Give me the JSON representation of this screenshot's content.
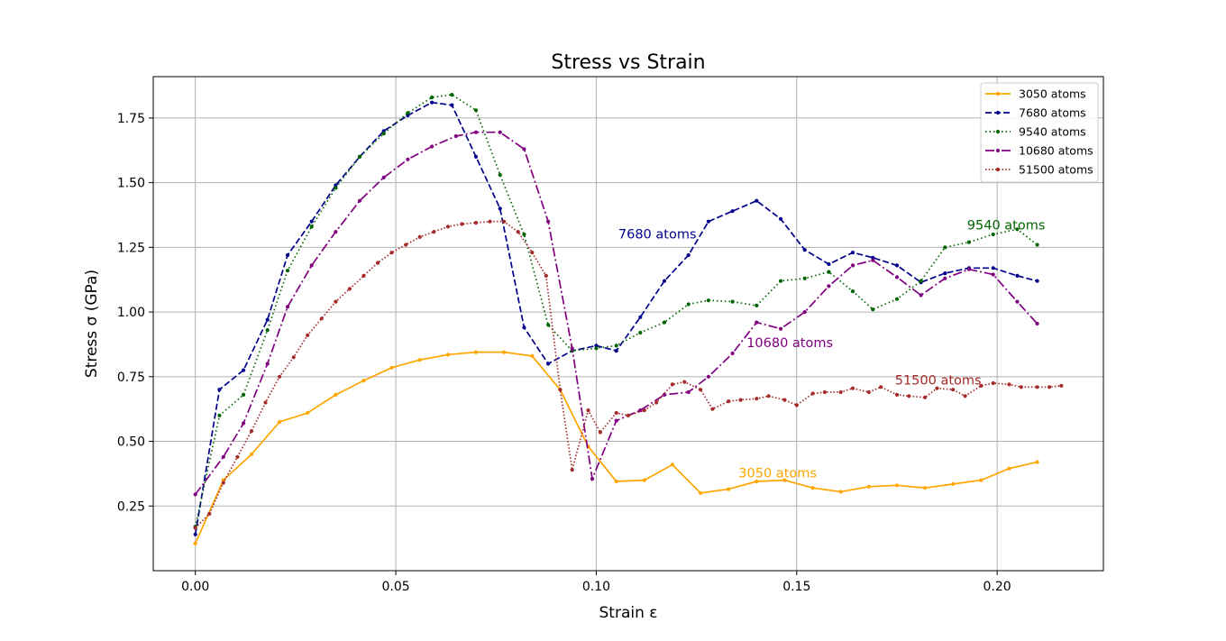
{
  "chart_data": {
    "type": "line",
    "title": "Stress vs Strain",
    "xlabel": "Strain ε",
    "ylabel": "Stress σ (GPa)",
    "xlim": [
      -0.0105,
      0.2265
    ],
    "ylim": [
      0.0,
      1.91
    ],
    "xticks": [
      "0.00",
      "0.05",
      "0.10",
      "0.15",
      "0.20"
    ],
    "yticks": [
      "0.25",
      "0.50",
      "0.75",
      "1.00",
      "1.25",
      "1.50",
      "1.75"
    ],
    "grid": true,
    "legend": "top-right",
    "series": [
      {
        "name": "3050 atoms",
        "color": "#ffa500",
        "dash": "solid",
        "annotation": "3050 atoms",
        "x": [
          0.0,
          0.007,
          0.014,
          0.021,
          0.028,
          0.035,
          0.042,
          0.049,
          0.056,
          0.063,
          0.07,
          0.077,
          0.084,
          0.091,
          0.098,
          0.105,
          0.112,
          0.119,
          0.126,
          0.133,
          0.14,
          0.147,
          0.154,
          0.161,
          0.168,
          0.175,
          0.182,
          0.189,
          0.196,
          0.203,
          0.21
        ],
        "y": [
          0.105,
          0.35,
          0.45,
          0.575,
          0.61,
          0.68,
          0.735,
          0.785,
          0.815,
          0.835,
          0.845,
          0.845,
          0.83,
          0.7,
          0.48,
          0.345,
          0.35,
          0.41,
          0.3,
          0.315,
          0.345,
          0.35,
          0.32,
          0.305,
          0.325,
          0.33,
          0.32,
          0.335,
          0.35,
          0.395,
          0.42
        ]
      },
      {
        "name": "7680 atoms",
        "color": "#00008b",
        "dash": "dashed",
        "annotation": "7680 atoms",
        "x": [
          0.0,
          0.006,
          0.012,
          0.018,
          0.023,
          0.029,
          0.035,
          0.041,
          0.047,
          0.053,
          0.059,
          0.064,
          0.07,
          0.076,
          0.082,
          0.088,
          0.094,
          0.1,
          0.105,
          0.111,
          0.117,
          0.123,
          0.128,
          0.134,
          0.14,
          0.146,
          0.152,
          0.158,
          0.164,
          0.169,
          0.175,
          0.181,
          0.187,
          0.193,
          0.199,
          0.205,
          0.21
        ],
        "y": [
          0.14,
          0.7,
          0.775,
          0.97,
          1.22,
          1.35,
          1.49,
          1.6,
          1.7,
          1.76,
          1.81,
          1.8,
          1.6,
          1.4,
          0.94,
          0.8,
          0.85,
          0.87,
          0.85,
          0.98,
          1.12,
          1.22,
          1.35,
          1.39,
          1.43,
          1.36,
          1.24,
          1.185,
          1.23,
          1.21,
          1.18,
          1.115,
          1.15,
          1.17,
          1.17,
          1.14,
          1.12
        ]
      },
      {
        "name": "9540 atoms",
        "color": "#006400",
        "dash": "dotted",
        "annotation": "9540 atoms",
        "x": [
          0.0,
          0.006,
          0.012,
          0.018,
          0.023,
          0.029,
          0.035,
          0.041,
          0.047,
          0.053,
          0.059,
          0.064,
          0.07,
          0.076,
          0.082,
          0.088,
          0.094,
          0.1,
          0.105,
          0.111,
          0.117,
          0.123,
          0.128,
          0.134,
          0.14,
          0.146,
          0.152,
          0.158,
          0.164,
          0.169,
          0.175,
          0.181,
          0.187,
          0.193,
          0.199,
          0.205,
          0.21
        ],
        "y": [
          0.17,
          0.6,
          0.68,
          0.93,
          1.16,
          1.33,
          1.48,
          1.6,
          1.69,
          1.77,
          1.83,
          1.84,
          1.78,
          1.53,
          1.3,
          0.95,
          0.85,
          0.86,
          0.87,
          0.92,
          0.96,
          1.03,
          1.045,
          1.04,
          1.025,
          1.12,
          1.13,
          1.155,
          1.08,
          1.01,
          1.05,
          1.12,
          1.25,
          1.27,
          1.3,
          1.32,
          1.26
        ]
      },
      {
        "name": "10680 atoms",
        "color": "#800080",
        "dash": "dashdot",
        "annotation": "10680 atoms",
        "x": [
          0.0,
          0.007,
          0.012,
          0.018,
          0.023,
          0.029,
          0.035,
          0.041,
          0.047,
          0.053,
          0.059,
          0.065,
          0.07,
          0.076,
          0.082,
          0.088,
          0.094,
          0.099,
          0.105,
          0.111,
          0.117,
          0.123,
          0.128,
          0.134,
          0.14,
          0.146,
          0.152,
          0.158,
          0.164,
          0.169,
          0.175,
          0.181,
          0.187,
          0.193,
          0.199,
          0.205,
          0.21
        ],
        "y": [
          0.295,
          0.44,
          0.57,
          0.8,
          1.02,
          1.18,
          1.31,
          1.43,
          1.52,
          1.59,
          1.64,
          1.68,
          1.695,
          1.695,
          1.63,
          1.35,
          0.86,
          0.355,
          0.58,
          0.62,
          0.68,
          0.69,
          0.75,
          0.84,
          0.96,
          0.935,
          1.0,
          1.1,
          1.18,
          1.2,
          1.135,
          1.065,
          1.13,
          1.165,
          1.145,
          1.04,
          0.955
        ]
      },
      {
        "name": "51500 atoms",
        "color": "#a52a2a",
        "dash": "densedot",
        "annotation": "51500 atoms",
        "x": [
          0.0,
          0.0035,
          0.007,
          0.0105,
          0.014,
          0.0175,
          0.021,
          0.0245,
          0.028,
          0.0315,
          0.035,
          0.0385,
          0.042,
          0.0455,
          0.049,
          0.0525,
          0.056,
          0.0595,
          0.063,
          0.0665,
          0.07,
          0.0735,
          0.077,
          0.0805,
          0.084,
          0.0875,
          0.091,
          0.094,
          0.098,
          0.101,
          0.105,
          0.108,
          0.112,
          0.115,
          0.119,
          0.122,
          0.126,
          0.129,
          0.133,
          0.136,
          0.14,
          0.143,
          0.147,
          0.15,
          0.154,
          0.157,
          0.161,
          0.164,
          0.168,
          0.171,
          0.175,
          0.178,
          0.182,
          0.185,
          0.189,
          0.192,
          0.196,
          0.199,
          0.203,
          0.206,
          0.21,
          0.213,
          0.216
        ],
        "y": [
          0.165,
          0.22,
          0.34,
          0.44,
          0.54,
          0.65,
          0.75,
          0.825,
          0.91,
          0.975,
          1.04,
          1.09,
          1.14,
          1.19,
          1.23,
          1.26,
          1.29,
          1.31,
          1.33,
          1.34,
          1.345,
          1.35,
          1.35,
          1.31,
          1.23,
          1.14,
          0.7,
          0.39,
          0.62,
          0.535,
          0.61,
          0.6,
          0.62,
          0.65,
          0.72,
          0.73,
          0.7,
          0.625,
          0.655,
          0.66,
          0.665,
          0.675,
          0.66,
          0.64,
          0.685,
          0.69,
          0.69,
          0.705,
          0.69,
          0.71,
          0.68,
          0.675,
          0.67,
          0.705,
          0.7,
          0.675,
          0.715,
          0.725,
          0.72,
          0.71,
          0.71,
          0.71,
          0.715
        ]
      }
    ],
    "annotations": [
      {
        "text": "7680 atoms",
        "x": 0.1055,
        "y": 1.285,
        "color": "#00008b"
      },
      {
        "text": "9540 atoms",
        "x": 0.1925,
        "y": 1.32,
        "color": "#006400"
      },
      {
        "text": "10680 atoms",
        "x": 0.1375,
        "y": 0.865,
        "color": "#800080"
      },
      {
        "text": "51500 atoms",
        "x": 0.1745,
        "y": 0.72,
        "color": "#a52a2a"
      },
      {
        "text": "3050 atoms",
        "x": 0.1355,
        "y": 0.36,
        "color": "#ffa500"
      }
    ]
  }
}
